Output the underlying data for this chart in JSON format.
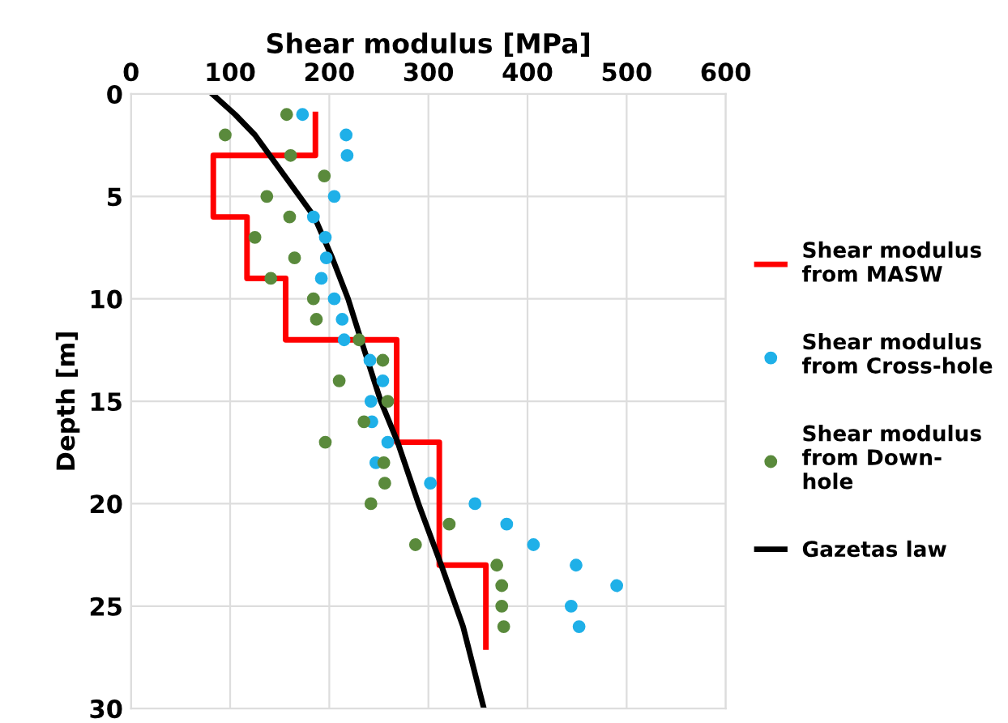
{
  "chart_data": {
    "type": "scatter",
    "xlabel": "Shear modulus [MPa]",
    "ylabel": "Depth [m]",
    "xlim": [
      0,
      600
    ],
    "xticks": [
      0,
      100,
      200,
      300,
      400,
      500,
      600
    ],
    "ylim": [
      30,
      0
    ],
    "yticks": [
      0,
      5,
      10,
      15,
      20,
      25,
      30
    ],
    "grid": true,
    "legend": "right",
    "marker": "circle",
    "series": [
      {
        "name": "Shear modulus\nfrom MASW",
        "type": "line",
        "color": "#ff0000",
        "marker": "none",
        "x": [
          186,
          186,
          83,
          83,
          117,
          117,
          156,
          156,
          268,
          268,
          311,
          311,
          358,
          358
        ],
        "values": [
          1,
          3,
          3,
          6,
          6,
          9,
          9,
          12,
          12,
          17,
          17,
          23,
          23,
          27
        ]
      },
      {
        "name": "Shear modulus\nfrom Cross-hole",
        "color": "#1fb0e8",
        "x": [
          173,
          217,
          218,
          205,
          184,
          196,
          197,
          192,
          205,
          213,
          215,
          241,
          254,
          242,
          243,
          259,
          247,
          302,
          347,
          379,
          406,
          449,
          490,
          444,
          452
        ],
        "values": [
          1,
          2,
          3,
          5,
          6,
          7,
          8,
          9,
          10,
          11,
          12,
          13,
          14,
          15,
          16,
          17,
          18,
          19,
          20,
          21,
          22,
          23,
          24,
          25,
          26
        ]
      },
      {
        "name": "Shear modulus\nfrom Down-\nhole",
        "color": "#5a8a3c",
        "x": [
          157,
          95,
          161,
          195,
          137,
          160,
          125,
          165,
          141,
          184,
          187,
          230,
          254,
          210,
          259,
          235,
          196,
          255,
          256,
          242,
          321,
          287,
          369,
          374,
          374,
          376
        ],
        "values": [
          1,
          2,
          3,
          4,
          5,
          6,
          7,
          8,
          9,
          10,
          11,
          12,
          13,
          14,
          15,
          16,
          17,
          18,
          19,
          20,
          21,
          22,
          23,
          24,
          25,
          26
        ]
      },
      {
        "name": "Gazetas law",
        "type": "line",
        "color": "#000000",
        "marker": "none",
        "x": [
          82,
          105,
          125,
          140,
          155,
          170,
          185,
          203,
          219,
          232,
          252,
          269,
          290,
          313,
          335,
          356
        ],
        "values": [
          0,
          1,
          2,
          3,
          4,
          5,
          6,
          8,
          10,
          12,
          15,
          17,
          20,
          23,
          26,
          30
        ]
      }
    ]
  }
}
